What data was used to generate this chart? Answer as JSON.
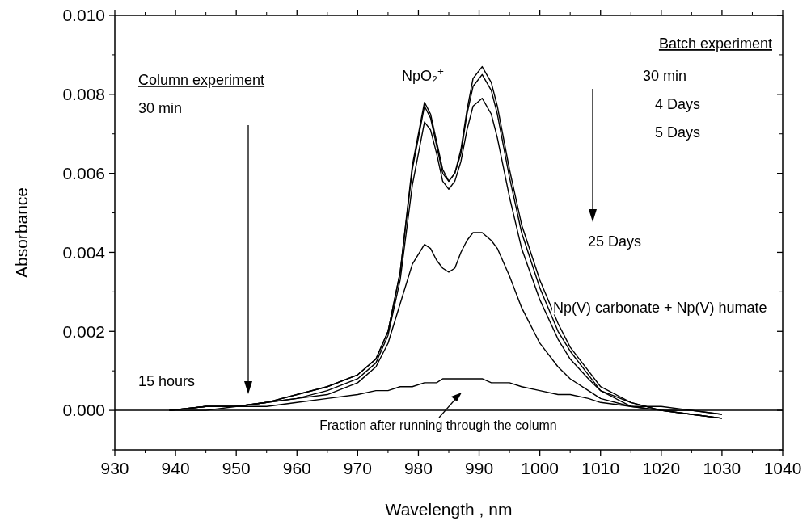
{
  "chart_data": {
    "type": "line",
    "xlabel": "Wavelength , nm",
    "ylabel": "Absorbance",
    "xlim": [
      930,
      1040
    ],
    "ylim": [
      -0.001,
      0.01
    ],
    "xticks": [
      930,
      940,
      950,
      960,
      970,
      980,
      990,
      1000,
      1010,
      1020,
      1030,
      1040
    ],
    "yticks": [
      {
        "value": 0,
        "label": "0.000"
      },
      {
        "value": 0.002,
        "label": "0.002"
      },
      {
        "value": 0.004,
        "label": "0.004"
      },
      {
        "value": 0.006,
        "label": "0.006"
      },
      {
        "value": 0.008,
        "label": "0.008"
      },
      {
        "value": 0.01,
        "label": "0.010"
      }
    ],
    "grid": false,
    "marker": "none",
    "line_style": "solid",
    "ref_lines": [
      {
        "axis": "y",
        "value": 0,
        "color": "#000000"
      }
    ],
    "annotations": [
      "Column experiment",
      "30 min",
      "15 hours",
      "Batch experiment",
      "30 min",
      "4 Days",
      "5 Days",
      "25 Days",
      "NpO₂$^{+}$",
      "Np(V) carbonate + Np(V) humate",
      "Fraction after running through the column"
    ],
    "x": [
      939,
      945,
      950,
      955,
      960,
      965,
      970,
      973,
      975,
      977,
      979,
      981,
      982,
      983,
      984,
      985,
      986,
      987,
      988,
      989,
      990.5,
      992,
      993,
      995,
      997,
      1000,
      1003,
      1005,
      1008,
      1010,
      1015,
      1020,
      1025,
      1030
    ],
    "series": [
      {
        "color": "#000000",
        "values": [
          0,
          0.0001,
          0.0001,
          0.0002,
          0.0004,
          0.0006,
          0.0009,
          0.0013,
          0.002,
          0.0035,
          0.0062,
          0.0078,
          0.0075,
          0.0068,
          0.0061,
          0.0058,
          0.006,
          0.0066,
          0.0076,
          0.0084,
          0.0087,
          0.0083,
          0.0077,
          0.0061,
          0.0047,
          0.0033,
          0.0022,
          0.0016,
          0.001,
          0.0006,
          0.0002,
          0.0,
          -0.0001,
          -0.0002
        ]
      },
      {
        "color": "#000000",
        "values": [
          0,
          0.0001,
          0.0001,
          0.0002,
          0.0004,
          0.0006,
          0.0009,
          0.0013,
          0.002,
          0.0035,
          0.0061,
          0.0077,
          0.0074,
          0.0067,
          0.006,
          0.0058,
          0.006,
          0.0065,
          0.0075,
          0.0082,
          0.0085,
          0.0081,
          0.0075,
          0.0059,
          0.0045,
          0.0031,
          0.002,
          0.0015,
          0.0009,
          0.0005,
          0.0002,
          0.0,
          -0.0001,
          -0.0002
        ]
      },
      {
        "color": "#000000",
        "values": [
          0,
          0.0001,
          0.0001,
          0.0002,
          0.0003,
          0.0005,
          0.0008,
          0.0012,
          0.0019,
          0.0033,
          0.0057,
          0.0073,
          0.0071,
          0.0065,
          0.0058,
          0.0056,
          0.0058,
          0.0063,
          0.0071,
          0.0077,
          0.0079,
          0.0075,
          0.0069,
          0.0054,
          0.0041,
          0.0028,
          0.0018,
          0.0013,
          0.0008,
          0.0005,
          0.0001,
          0.0,
          -0.0001,
          -0.0002
        ]
      },
      {
        "color": "#000000",
        "values": [
          0,
          0.0001,
          0.0001,
          0.0002,
          0.0003,
          0.0004,
          0.0007,
          0.0011,
          0.0017,
          0.0027,
          0.0037,
          0.0042,
          0.0041,
          0.0038,
          0.0036,
          0.0035,
          0.0036,
          0.004,
          0.0043,
          0.0045,
          0.0045,
          0.0043,
          0.0041,
          0.0034,
          0.0026,
          0.0017,
          0.0011,
          0.0008,
          0.0005,
          0.0003,
          0.0001,
          0.0,
          0.0,
          -0.0001
        ]
      },
      {
        "color": "#000000",
        "values": [
          0,
          0,
          0.0001,
          0.0001,
          0.0002,
          0.0003,
          0.0004,
          0.0005,
          0.0005,
          0.0006,
          0.0006,
          0.0007,
          0.0007,
          0.0007,
          0.0008,
          0.0008,
          0.0008,
          0.0008,
          0.0008,
          0.0008,
          0.0008,
          0.0007,
          0.0007,
          0.0007,
          0.0006,
          0.0005,
          0.0004,
          0.0004,
          0.0003,
          0.0002,
          0.0001,
          0.0001,
          0,
          -0.0001
        ]
      }
    ]
  }
}
